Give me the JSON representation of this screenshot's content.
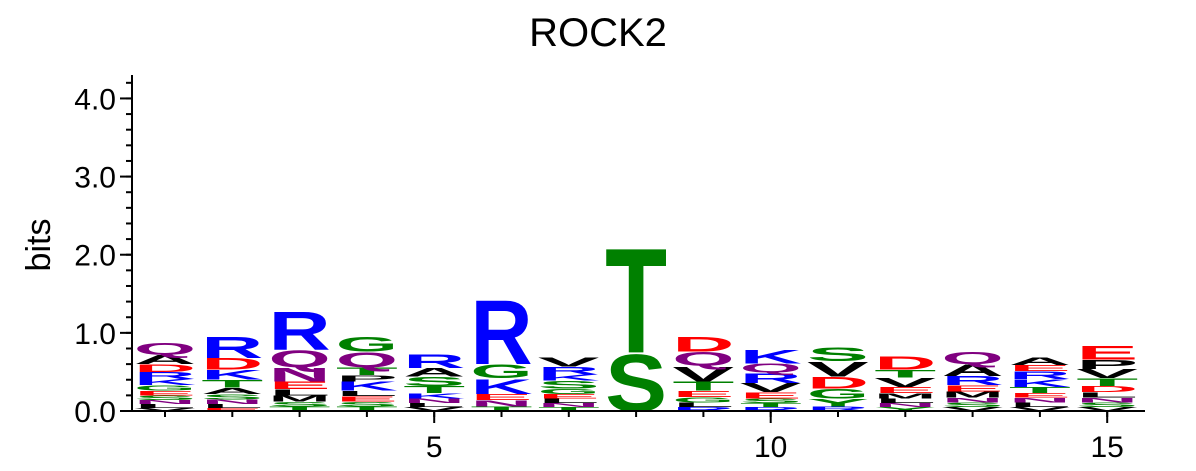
{
  "chart_data": {
    "type": "sequence-logo",
    "title": "ROCK2",
    "xlabel": "",
    "ylabel": "bits",
    "ylim": [
      0,
      4.3
    ],
    "y_ticks": [
      "0.0",
      "1.0",
      "2.0",
      "3.0",
      "4.0"
    ],
    "x_ticks": [
      "5",
      "10",
      "15"
    ],
    "colors": {
      "A": "#000000",
      "C": "#008000",
      "D": "#ff0000",
      "E": "#ff0000",
      "F": "#000000",
      "G": "#008000",
      "H": "#0000ff",
      "I": "#000000",
      "K": "#0000ff",
      "L": "#000000",
      "M": "#000000",
      "N": "#800080",
      "P": "#000000",
      "Q": "#800080",
      "R": "#0000ff",
      "S": "#008000",
      "T": "#008000",
      "V": "#000000",
      "W": "#000000",
      "Y": "#008000"
    },
    "positions": [
      {
        "position": 1,
        "total_bits": 0.95,
        "letters": [
          {
            "letter": "V",
            "bits": 0.04
          },
          {
            "letter": "L",
            "bits": 0.05
          },
          {
            "letter": "N",
            "bits": 0.05
          },
          {
            "letter": "S",
            "bits": 0.06
          },
          {
            "letter": "E",
            "bits": 0.06
          },
          {
            "letter": "G",
            "bits": 0.07
          },
          {
            "letter": "K",
            "bits": 0.08
          },
          {
            "letter": "R",
            "bits": 0.09
          },
          {
            "letter": "D",
            "bits": 0.1
          },
          {
            "letter": "A",
            "bits": 0.12
          },
          {
            "letter": "Q",
            "bits": 0.15
          }
        ]
      },
      {
        "position": 2,
        "total_bits": 1.05,
        "letters": [
          {
            "letter": "E",
            "bits": 0.04
          },
          {
            "letter": "L",
            "bits": 0.05
          },
          {
            "letter": "N",
            "bits": 0.06
          },
          {
            "letter": "S",
            "bits": 0.07
          },
          {
            "letter": "A",
            "bits": 0.08
          },
          {
            "letter": "T",
            "bits": 0.1
          },
          {
            "letter": "K",
            "bits": 0.13
          },
          {
            "letter": "D",
            "bits": 0.15
          },
          {
            "letter": "R",
            "bits": 0.28
          }
        ]
      },
      {
        "position": 3,
        "total_bits": 1.36,
        "letters": [
          {
            "letter": "T",
            "bits": 0.06
          },
          {
            "letter": "S",
            "bits": 0.06
          },
          {
            "letter": "M",
            "bits": 0.08
          },
          {
            "letter": "L",
            "bits": 0.08
          },
          {
            "letter": "E",
            "bits": 0.1
          },
          {
            "letter": "N",
            "bits": 0.18
          },
          {
            "letter": "Q",
            "bits": 0.22
          },
          {
            "letter": "R",
            "bits": 0.5
          }
        ]
      },
      {
        "position": 4,
        "total_bits": 1.12,
        "letters": [
          {
            "letter": "T",
            "bits": 0.06
          },
          {
            "letter": "S",
            "bits": 0.06
          },
          {
            "letter": "E",
            "bits": 0.07
          },
          {
            "letter": "L",
            "bits": 0.07
          },
          {
            "letter": "K",
            "bits": 0.12
          },
          {
            "letter": "P",
            "bits": 0.08
          },
          {
            "letter": "T",
            "bits": 0.1
          },
          {
            "letter": "Q",
            "bits": 0.2
          },
          {
            "letter": "G",
            "bits": 0.2
          }
        ]
      },
      {
        "position": 5,
        "total_bits": 0.92,
        "letters": [
          {
            "letter": "V",
            "bits": 0.05
          },
          {
            "letter": "L",
            "bits": 0.05
          },
          {
            "letter": "N",
            "bits": 0.06
          },
          {
            "letter": "K",
            "bits": 0.07
          },
          {
            "letter": "T",
            "bits": 0.09
          },
          {
            "letter": "S",
            "bits": 0.12
          },
          {
            "letter": "A",
            "bits": 0.11
          },
          {
            "letter": "R",
            "bits": 0.18
          }
        ]
      },
      {
        "position": 6,
        "total_bits": 1.58,
        "letters": [
          {
            "letter": "T",
            "bits": 0.06
          },
          {
            "letter": "N",
            "bits": 0.08
          },
          {
            "letter": "E",
            "bits": 0.08
          },
          {
            "letter": "K",
            "bits": 0.2
          },
          {
            "letter": "G",
            "bits": 0.18
          },
          {
            "letter": "R",
            "bits": 0.85
          }
        ]
      },
      {
        "position": 7,
        "total_bits": 0.85,
        "letters": [
          {
            "letter": "T",
            "bits": 0.05
          },
          {
            "letter": "N",
            "bits": 0.05
          },
          {
            "letter": "L",
            "bits": 0.06
          },
          {
            "letter": "E",
            "bits": 0.06
          },
          {
            "letter": "G",
            "bits": 0.07
          },
          {
            "letter": "S",
            "bits": 0.1
          },
          {
            "letter": "K",
            "bits": 0.08
          },
          {
            "letter": "R",
            "bits": 0.1
          },
          {
            "letter": "V",
            "bits": 0.12
          }
        ]
      },
      {
        "position": 8,
        "total_bits": 2.15,
        "letters": [
          {
            "letter": "S",
            "bits": 0.75
          },
          {
            "letter": "T",
            "bits": 1.38
          }
        ]
      },
      {
        "position": 9,
        "total_bits": 1.1,
        "letters": [
          {
            "letter": "R",
            "bits": 0.05
          },
          {
            "letter": "L",
            "bits": 0.06
          },
          {
            "letter": "G",
            "bits": 0.07
          },
          {
            "letter": "E",
            "bits": 0.08
          },
          {
            "letter": "T",
            "bits": 0.12
          },
          {
            "letter": "V",
            "bits": 0.2
          },
          {
            "letter": "Q",
            "bits": 0.18
          },
          {
            "letter": "D",
            "bits": 0.2
          }
        ]
      },
      {
        "position": 10,
        "total_bits": 0.95,
        "letters": [
          {
            "letter": "R",
            "bits": 0.05
          },
          {
            "letter": "T",
            "bits": 0.05
          },
          {
            "letter": "S",
            "bits": 0.06
          },
          {
            "letter": "E",
            "bits": 0.08
          },
          {
            "letter": "V",
            "bits": 0.12
          },
          {
            "letter": "R",
            "bits": 0.13
          },
          {
            "letter": "Q",
            "bits": 0.12
          },
          {
            "letter": "K",
            "bits": 0.18
          }
        ]
      },
      {
        "position": 11,
        "total_bits": 1.08,
        "letters": [
          {
            "letter": "R",
            "bits": 0.06
          },
          {
            "letter": "Y",
            "bits": 0.1
          },
          {
            "letter": "G",
            "bits": 0.13
          },
          {
            "letter": "D",
            "bits": 0.15
          },
          {
            "letter": "V",
            "bits": 0.2
          },
          {
            "letter": "S",
            "bits": 0.18
          }
        ]
      },
      {
        "position": 12,
        "total_bits": 0.9,
        "letters": [
          {
            "letter": "Y",
            "bits": 0.05
          },
          {
            "letter": "N",
            "bits": 0.05
          },
          {
            "letter": "L",
            "bits": 0.06
          },
          {
            "letter": "M",
            "bits": 0.07
          },
          {
            "letter": "E",
            "bits": 0.08
          },
          {
            "letter": "V",
            "bits": 0.12
          },
          {
            "letter": "T",
            "bits": 0.1
          },
          {
            "letter": "D",
            "bits": 0.17
          }
        ]
      },
      {
        "position": 13,
        "total_bits": 0.98,
        "letters": [
          {
            "letter": "V",
            "bits": 0.05
          },
          {
            "letter": "S",
            "bits": 0.06
          },
          {
            "letter": "N",
            "bits": 0.06
          },
          {
            "letter": "M",
            "bits": 0.08
          },
          {
            "letter": "E",
            "bits": 0.08
          },
          {
            "letter": "R",
            "bits": 0.12
          },
          {
            "letter": "A",
            "bits": 0.15
          },
          {
            "letter": "Q",
            "bits": 0.16
          }
        ]
      },
      {
        "position": 14,
        "total_bits": 0.82,
        "letters": [
          {
            "letter": "V",
            "bits": 0.05
          },
          {
            "letter": "L",
            "bits": 0.06
          },
          {
            "letter": "N",
            "bits": 0.06
          },
          {
            "letter": "E",
            "bits": 0.06
          },
          {
            "letter": "T",
            "bits": 0.08
          },
          {
            "letter": "K",
            "bits": 0.1
          },
          {
            "letter": "R",
            "bits": 0.1
          },
          {
            "letter": "E",
            "bits": 0.08
          },
          {
            "letter": "A",
            "bits": 0.1
          }
        ]
      },
      {
        "position": 15,
        "total_bits": 1.0,
        "letters": [
          {
            "letter": "V",
            "bits": 0.05
          },
          {
            "letter": "S",
            "bits": 0.06
          },
          {
            "letter": "N",
            "bits": 0.06
          },
          {
            "letter": "L",
            "bits": 0.07
          },
          {
            "letter": "D",
            "bits": 0.08
          },
          {
            "letter": "T",
            "bits": 0.1
          },
          {
            "letter": "V",
            "bits": 0.12
          },
          {
            "letter": "P",
            "bits": 0.12
          },
          {
            "letter": "E",
            "bits": 0.18
          }
        ]
      }
    ]
  }
}
